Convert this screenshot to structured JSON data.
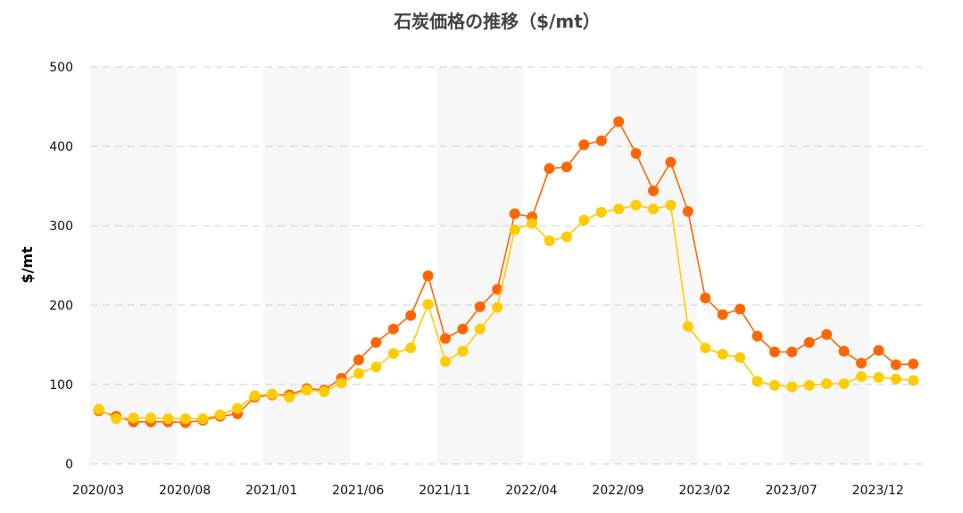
{
  "chart_data": {
    "type": "line",
    "title": "石炭価格の推移（$/mt）",
    "ylabel": "$/mt",
    "xlabel": "",
    "ylim": [
      0,
      500
    ],
    "yticks": [
      0,
      100,
      200,
      300,
      400,
      500
    ],
    "grid": true,
    "x": [
      "2020/03",
      "2020/04",
      "2020/05",
      "2020/06",
      "2020/07",
      "2020/08",
      "2020/09",
      "2020/10",
      "2020/11",
      "2020/12",
      "2021/01",
      "2021/02",
      "2021/03",
      "2021/04",
      "2021/05",
      "2021/06",
      "2021/07",
      "2021/08",
      "2021/09",
      "2021/10",
      "2021/11",
      "2021/12",
      "2022/01",
      "2022/02",
      "2022/03",
      "2022/04",
      "2022/05",
      "2022/06",
      "2022/07",
      "2022/08",
      "2022/09",
      "2022/10",
      "2022/11",
      "2022/12",
      "2023/01",
      "2023/02",
      "2023/03",
      "2023/04",
      "2023/05",
      "2023/06",
      "2023/07",
      "2023/08",
      "2023/09",
      "2023/10",
      "2023/11",
      "2023/12",
      "2024/01",
      "2024/02"
    ],
    "xtick_labels": [
      "2020/03",
      "2020/08",
      "2021/01",
      "2021/06",
      "2021/11",
      "2022/04",
      "2022/09",
      "2023/02",
      "2023/07",
      "2023/12"
    ],
    "series": [
      {
        "color": "#ff6600",
        "values": [
          67,
          60,
          53,
          53,
          53,
          52,
          55,
          60,
          63,
          84,
          87,
          87,
          95,
          93,
          108,
          131,
          153,
          170,
          187,
          237,
          158,
          170,
          198,
          220,
          315,
          311,
          372,
          374,
          402,
          407,
          431,
          391,
          344,
          380,
          318,
          209,
          188,
          195,
          161,
          141,
          141,
          153,
          163,
          142,
          127,
          143,
          125,
          126
        ]
      },
      {
        "color": "#ffcc00",
        "values": [
          69,
          57,
          58,
          58,
          57,
          57,
          57,
          62,
          70,
          86,
          88,
          84,
          93,
          91,
          102,
          114,
          122,
          139,
          146,
          201,
          129,
          142,
          170,
          197,
          295,
          303,
          281,
          286,
          307,
          317,
          321,
          326,
          321,
          326,
          173,
          146,
          138,
          134,
          104,
          99,
          97,
          99,
          101,
          101,
          110,
          109,
          107,
          105
        ]
      }
    ],
    "colors": {
      "band": "#f7f7f7",
      "grid": "#d0d0d0",
      "title": "#444444"
    }
  }
}
